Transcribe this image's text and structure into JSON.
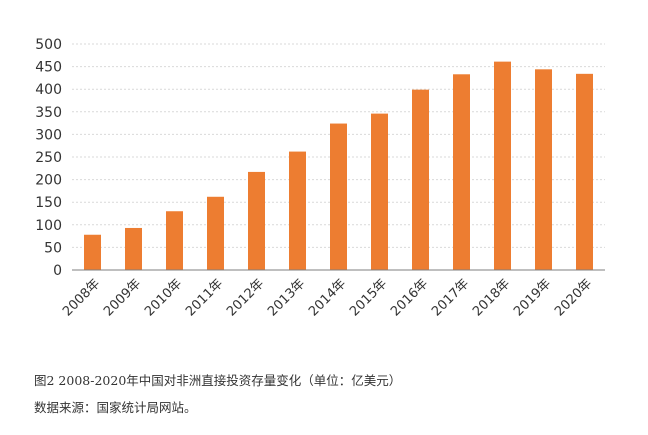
{
  "chart_data": {
    "type": "bar",
    "categories": [
      "2008年",
      "2009年",
      "2010年",
      "2011年",
      "2012年",
      "2013年",
      "2014年",
      "2015年",
      "2016年",
      "2017年",
      "2018年",
      "2019年",
      "2020年"
    ],
    "values": [
      78,
      93,
      130,
      162,
      217,
      262,
      324,
      346,
      399,
      433,
      461,
      444,
      434
    ],
    "ylim": [
      0,
      500
    ],
    "yticks": [
      0,
      50,
      100,
      150,
      200,
      250,
      300,
      350,
      400,
      450,
      500
    ],
    "grid": true,
    "bar_color": "#ED7D31",
    "grid_color": "#D9D9D9",
    "axis_color": "#7F7F7F"
  },
  "caption": {
    "title": "图2 2008-2020年中国对非洲直接投资存量变化（单位：亿美元）",
    "source": "数据来源：国家统计局网站。"
  }
}
